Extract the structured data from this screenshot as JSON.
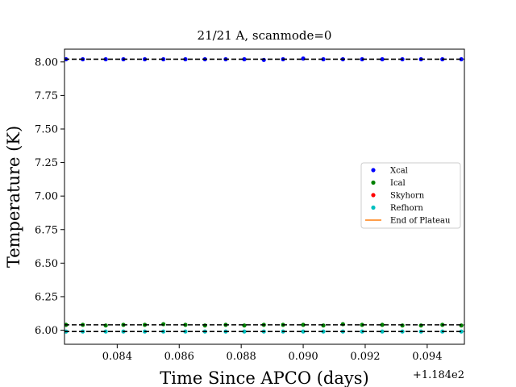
{
  "chart_data": {
    "type": "scatter",
    "title": "21/21 A, scanmode=0",
    "xlabel": "Time Since APCO (days)",
    "ylabel": "Temperature (K)",
    "x_offset_label": "+1.184e2",
    "xlim": [
      118.4823,
      118.4952
    ],
    "ylim": [
      5.895,
      8.095
    ],
    "x_ticks": [
      118.484,
      118.486,
      118.488,
      118.49,
      118.492,
      118.494
    ],
    "x_tick_labels": [
      "0.084",
      "0.086",
      "0.088",
      "0.090",
      "0.092",
      "0.094"
    ],
    "y_ticks": [
      6.0,
      6.25,
      6.5,
      6.75,
      7.0,
      7.25,
      7.5,
      7.75,
      8.0
    ],
    "y_tick_labels": [
      "6.00",
      "6.25",
      "6.50",
      "6.75",
      "7.00",
      "7.25",
      "7.50",
      "7.75",
      "8.00"
    ],
    "legend_position": "center-right",
    "series": [
      {
        "name": "Xcal",
        "color": "#0000ff",
        "x": [
          118.48235,
          118.48289,
          118.48363,
          118.4842,
          118.48489,
          118.48549,
          118.4862,
          118.48683,
          118.4875,
          118.4881,
          118.48873,
          118.48935,
          118.49,
          118.49065,
          118.49128,
          118.4919,
          118.49255,
          118.4932,
          118.4938,
          118.49449,
          118.4951
        ],
        "y": [
          8.02,
          8.02,
          8.02,
          8.02,
          8.02,
          8.02,
          8.02,
          8.02,
          8.02,
          8.02,
          8.015,
          8.02,
          8.025,
          8.02,
          8.02,
          8.02,
          8.02,
          8.02,
          8.02,
          8.02,
          8.02
        ]
      },
      {
        "name": "Ical",
        "color": "#008000",
        "x": [
          118.48235,
          118.48289,
          118.48363,
          118.4842,
          118.48489,
          118.48549,
          118.4862,
          118.48683,
          118.4875,
          118.4881,
          118.48873,
          118.48935,
          118.49,
          118.49065,
          118.49128,
          118.4919,
          118.49255,
          118.4932,
          118.4938,
          118.49449,
          118.4951
        ],
        "y": [
          6.04,
          6.04,
          6.035,
          6.04,
          6.04,
          6.045,
          6.04,
          6.035,
          6.04,
          6.035,
          6.04,
          6.04,
          6.04,
          6.035,
          6.045,
          6.04,
          6.04,
          6.035,
          6.035,
          6.04,
          6.035
        ]
      },
      {
        "name": "Skyhorn",
        "color": "#ff0000",
        "x": [],
        "y": []
      },
      {
        "name": "Refhorn",
        "color": "#00bfbf",
        "x": [
          118.48235,
          118.48289,
          118.48363,
          118.4842,
          118.48489,
          118.48549,
          118.4862,
          118.48683,
          118.4875,
          118.4881,
          118.48873,
          118.48935,
          118.49,
          118.49065,
          118.49128,
          118.4919,
          118.49255,
          118.4932,
          118.4938,
          118.49449,
          118.4951
        ],
        "y": [
          5.99,
          5.99,
          5.99,
          5.99,
          5.99,
          5.99,
          5.99,
          5.99,
          5.99,
          5.99,
          5.99,
          5.99,
          5.99,
          5.99,
          5.99,
          5.99,
          5.99,
          5.99,
          5.99,
          5.99,
          5.99
        ]
      },
      {
        "name": "End of Plateau",
        "color": "#ff7f0e",
        "x": [],
        "y": []
      }
    ],
    "hlines": [
      {
        "y": 8.02,
        "style": "dashed",
        "color": "#000000"
      },
      {
        "y": 6.04,
        "style": "dashed",
        "color": "#000000"
      },
      {
        "y": 5.99,
        "style": "dashed",
        "color": "#000000"
      }
    ]
  }
}
